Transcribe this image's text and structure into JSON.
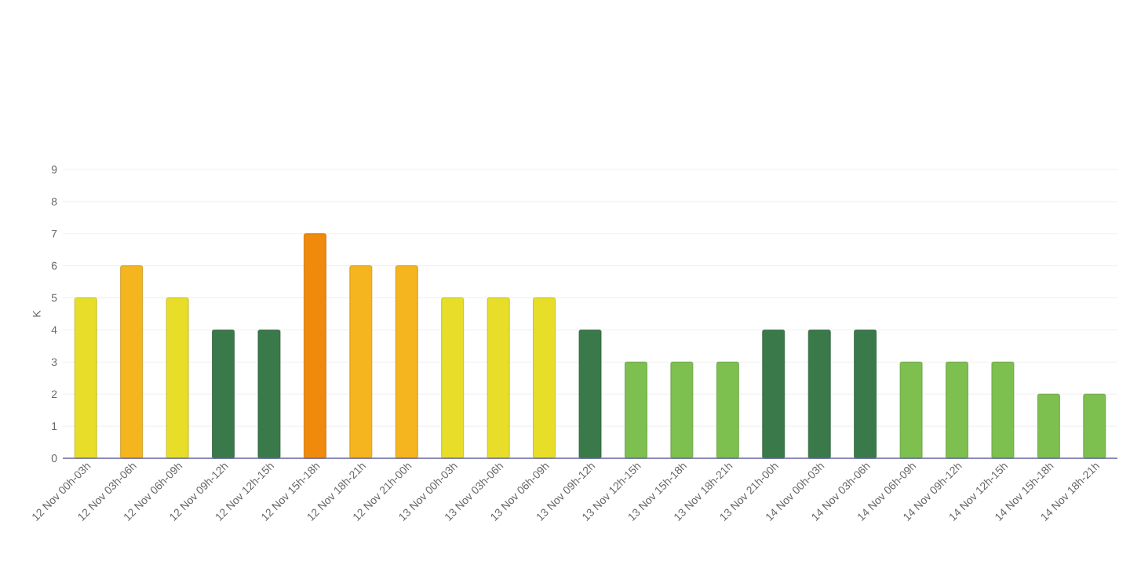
{
  "chart_data": {
    "type": "bar",
    "ylabel": "K",
    "categories": [
      "12 Nov 00h-03h",
      "12 Nov 03h-06h",
      "12 Nov 06h-09h",
      "12 Nov 09h-12h",
      "12 Nov 12h-15h",
      "12 Nov 15h-18h",
      "12 Nov 18h-21h",
      "12 Nov 21h-00h",
      "13 Nov 00h-03h",
      "13 Nov 03h-06h",
      "13 Nov 06h-09h",
      "13 Nov 09h-12h",
      "13 Nov 12h-15h",
      "13 Nov 15h-18h",
      "13 Nov 18h-21h",
      "13 Nov 21h-00h",
      "14 Nov 00h-03h",
      "14 Nov 03h-06h",
      "14 Nov 06h-09h",
      "14 Nov 09h-12h",
      "14 Nov 12h-15h",
      "14 Nov 15h-18h",
      "14 Nov 18h-21h"
    ],
    "values": [
      5,
      6,
      5,
      4,
      4,
      7,
      6,
      6,
      5,
      5,
      5,
      4,
      3,
      3,
      3,
      4,
      4,
      4,
      3,
      3,
      3,
      2,
      2
    ],
    "colors": [
      "#e8de2a",
      "#f5b51f",
      "#e8de2a",
      "#3a7a4a",
      "#3a7a4a",
      "#f08a0c",
      "#f5b51f",
      "#f5b51f",
      "#e8de2a",
      "#e8de2a",
      "#e8de2a",
      "#3a7a4a",
      "#7dc04f",
      "#7dc04f",
      "#7dc04f",
      "#3a7a4a",
      "#3a7a4a",
      "#3a7a4a",
      "#7dc04f",
      "#7dc04f",
      "#7dc04f",
      "#7dc04f",
      "#7dc04f"
    ],
    "ylim": [
      0,
      9
    ],
    "yticks": [
      0,
      1,
      2,
      3,
      4,
      5,
      6,
      7,
      8,
      9
    ],
    "grid": "y"
  }
}
